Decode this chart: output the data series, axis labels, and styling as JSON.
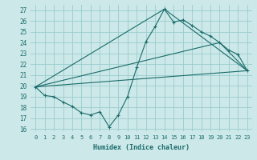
{
  "xlabel": "Humidex (Indice chaleur)",
  "bg_color": "#cce8e8",
  "grid_color": "#99cccc",
  "line_color": "#1a6b6b",
  "xlim": [
    -0.5,
    23.5
  ],
  "ylim": [
    15.8,
    27.5
  ],
  "xticks": [
    0,
    1,
    2,
    3,
    4,
    5,
    6,
    7,
    8,
    9,
    10,
    11,
    12,
    13,
    14,
    15,
    16,
    17,
    18,
    19,
    20,
    21,
    22,
    23
  ],
  "yticks": [
    16,
    17,
    18,
    19,
    20,
    21,
    22,
    23,
    24,
    25,
    26,
    27
  ],
  "series1_x": [
    0,
    1,
    2,
    3,
    4,
    5,
    6,
    7,
    8,
    9,
    10,
    11,
    12,
    13,
    14,
    15,
    16,
    17,
    18,
    19,
    20,
    21,
    22,
    23
  ],
  "series1_y": [
    19.9,
    19.1,
    19.0,
    18.5,
    18.1,
    17.5,
    17.3,
    17.6,
    16.2,
    17.3,
    19.0,
    21.7,
    24.1,
    25.5,
    27.1,
    25.9,
    26.1,
    25.6,
    25.0,
    24.6,
    24.0,
    23.3,
    22.9,
    21.4
  ],
  "series2_x": [
    0,
    23
  ],
  "series2_y": [
    19.9,
    21.4
  ],
  "series3_x": [
    0,
    14,
    23
  ],
  "series3_y": [
    19.9,
    27.1,
    21.4
  ],
  "series4_x": [
    0,
    20,
    23
  ],
  "series4_y": [
    19.9,
    24.0,
    21.4
  ]
}
